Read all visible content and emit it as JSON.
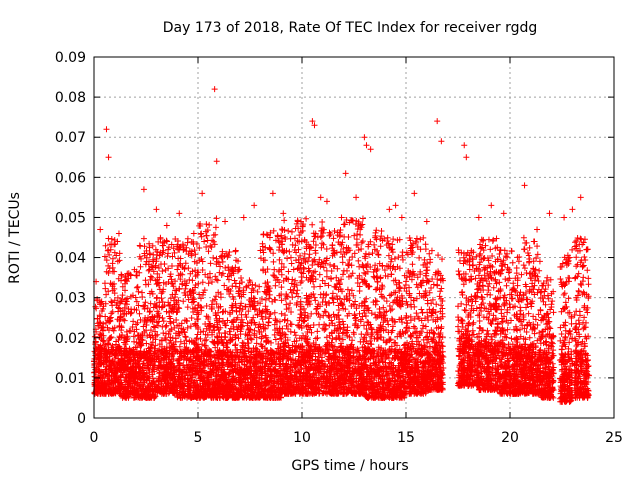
{
  "chart_data": {
    "type": "scatter",
    "title": "Day 173 of 2018, Rate Of TEC Index for receiver rgdg",
    "xlabel": "GPS time / hours",
    "ylabel": "ROTI / TECUs",
    "xlim": [
      0,
      25
    ],
    "ylim": [
      0,
      0.09
    ],
    "xticks": [
      0,
      5,
      10,
      15,
      20,
      25
    ],
    "yticks": [
      0,
      0.01,
      0.02,
      0.03,
      0.04,
      0.05,
      0.06,
      0.07,
      0.08,
      0.09
    ],
    "xtick_labels": [
      "0",
      "5",
      "10",
      "15",
      "20",
      "25"
    ],
    "ytick_labels": [
      "0",
      "0.01",
      "0.02",
      "0.03",
      "0.04",
      "0.05",
      "0.06",
      "0.07",
      "0.08",
      "0.09"
    ],
    "grid": true,
    "marker": "plus",
    "color": "#ff0000",
    "x": [
      0.6,
      0.7,
      5.8,
      5.9,
      10.5,
      10.6,
      16.5,
      16.7,
      13.0,
      13.1,
      13.3,
      17.8,
      17.9,
      12.1,
      2.4,
      5.2,
      20.7,
      23.4,
      7.2,
      8.6,
      0.1,
      0.3,
      1.6,
      2.2,
      3.0,
      3.5,
      4.1,
      4.8,
      6.3,
      7.7,
      9.1,
      9.8,
      11.2,
      11.9,
      12.6,
      14.2,
      14.8,
      15.4,
      16.0,
      18.5,
      19.1,
      19.7,
      21.3,
      21.9,
      22.6,
      23.0,
      23.7,
      1.2,
      10.9,
      14.5
    ],
    "y": [
      0.072,
      0.065,
      0.082,
      0.064,
      0.074,
      0.073,
      0.074,
      0.069,
      0.07,
      0.068,
      0.067,
      0.068,
      0.065,
      0.061,
      0.057,
      0.056,
      0.058,
      0.055,
      0.05,
      0.056,
      0.034,
      0.047,
      0.036,
      0.043,
      0.052,
      0.048,
      0.051,
      0.046,
      0.049,
      0.053,
      0.051,
      0.049,
      0.054,
      0.05,
      0.055,
      0.052,
      0.05,
      0.056,
      0.049,
      0.05,
      0.053,
      0.051,
      0.047,
      0.051,
      0.05,
      0.052,
      0.042,
      0.046,
      0.055,
      0.053
    ],
    "density_bands": [
      {
        "x0": 0.0,
        "x1": 0.5,
        "ymin": 0.006,
        "ymax": 0.03
      },
      {
        "x0": 0.5,
        "x1": 1.3,
        "ymin": 0.006,
        "ymax": 0.045
      },
      {
        "x0": 1.3,
        "x1": 2.2,
        "ymin": 0.005,
        "ymax": 0.037
      },
      {
        "x0": 2.2,
        "x1": 3.0,
        "ymin": 0.005,
        "ymax": 0.045
      },
      {
        "x0": 3.0,
        "x1": 4.0,
        "ymin": 0.006,
        "ymax": 0.045
      },
      {
        "x0": 4.0,
        "x1": 5.0,
        "ymin": 0.005,
        "ymax": 0.045
      },
      {
        "x0": 5.0,
        "x1": 6.0,
        "ymin": 0.005,
        "ymax": 0.05
      },
      {
        "x0": 6.0,
        "x1": 7.0,
        "ymin": 0.005,
        "ymax": 0.042
      },
      {
        "x0": 7.0,
        "x1": 8.0,
        "ymin": 0.005,
        "ymax": 0.035
      },
      {
        "x0": 8.0,
        "x1": 9.0,
        "ymin": 0.005,
        "ymax": 0.047
      },
      {
        "x0": 9.0,
        "x1": 10.0,
        "ymin": 0.006,
        "ymax": 0.05
      },
      {
        "x0": 10.0,
        "x1": 11.0,
        "ymin": 0.006,
        "ymax": 0.05
      },
      {
        "x0": 11.0,
        "x1": 12.0,
        "ymin": 0.006,
        "ymax": 0.047
      },
      {
        "x0": 12.0,
        "x1": 13.0,
        "ymin": 0.006,
        "ymax": 0.05
      },
      {
        "x0": 13.0,
        "x1": 14.0,
        "ymin": 0.005,
        "ymax": 0.047
      },
      {
        "x0": 14.0,
        "x1": 15.0,
        "ymin": 0.005,
        "ymax": 0.045
      },
      {
        "x0": 15.0,
        "x1": 16.0,
        "ymin": 0.006,
        "ymax": 0.045
      },
      {
        "x0": 16.0,
        "x1": 16.8,
        "ymin": 0.007,
        "ymax": 0.042
      },
      {
        "x0": 17.5,
        "x1": 18.5,
        "ymin": 0.008,
        "ymax": 0.042
      },
      {
        "x0": 18.5,
        "x1": 19.5,
        "ymin": 0.007,
        "ymax": 0.045
      },
      {
        "x0": 19.5,
        "x1": 20.5,
        "ymin": 0.006,
        "ymax": 0.042
      },
      {
        "x0": 20.5,
        "x1": 21.5,
        "ymin": 0.006,
        "ymax": 0.045
      },
      {
        "x0": 21.5,
        "x1": 22.1,
        "ymin": 0.005,
        "ymax": 0.035
      },
      {
        "x0": 22.4,
        "x1": 23.0,
        "ymin": 0.004,
        "ymax": 0.042
      },
      {
        "x0": 23.1,
        "x1": 23.8,
        "ymin": 0.005,
        "ymax": 0.045
      }
    ]
  }
}
